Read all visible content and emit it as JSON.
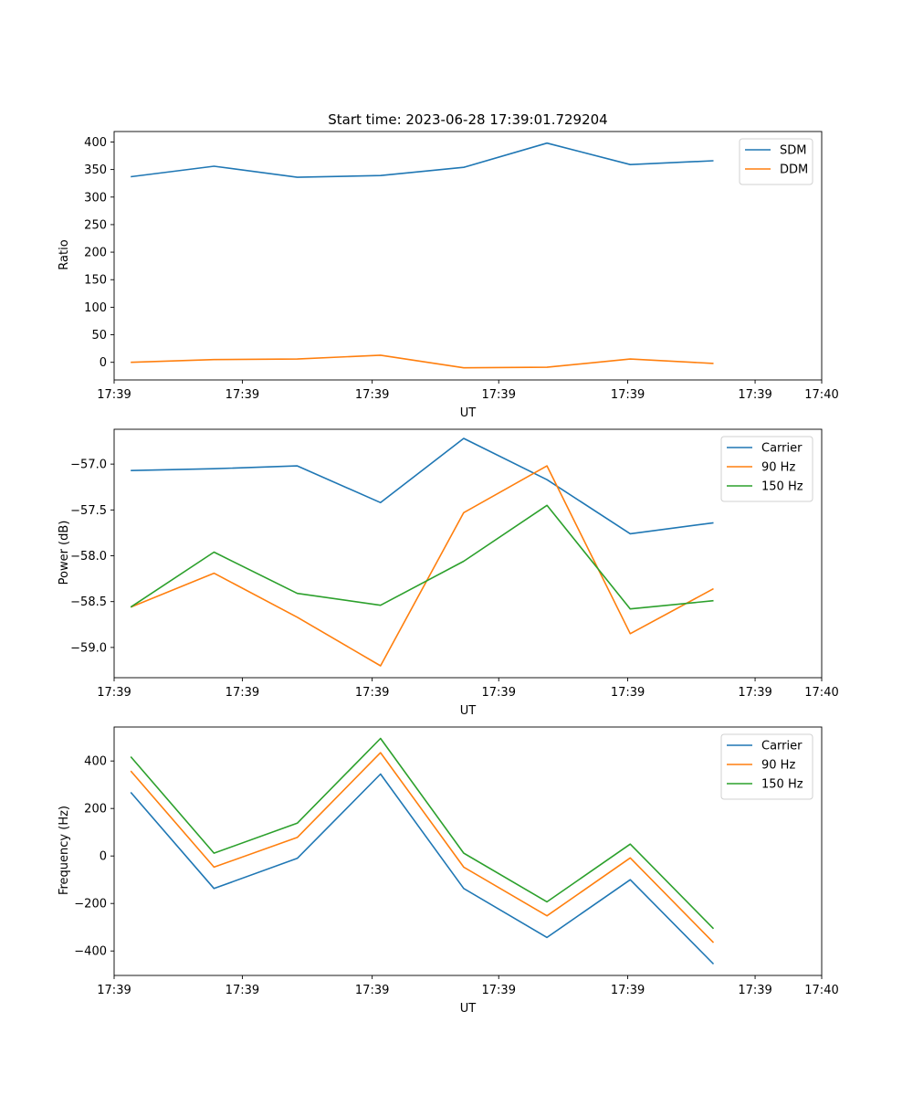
{
  "chart_data": [
    {
      "type": "line",
      "title": "Start time: 2023-06-28 17:39:01.729204",
      "xlabel": "UT",
      "ylabel": "Ratio",
      "x": [
        1,
        2,
        3,
        4,
        5,
        6,
        7,
        8
      ],
      "xlim": [
        0.8,
        9.3
      ],
      "x_ticks": [
        0.8,
        2.34,
        3.9,
        5.42,
        6.97,
        8.5,
        9.3
      ],
      "x_tick_labels": [
        "17:39",
        "17:39",
        "17:39",
        "17:39",
        "17:39",
        "17:39",
        "17:40"
      ],
      "ylim": [
        -32,
        419
      ],
      "y_ticks": [
        0,
        50,
        100,
        150,
        200,
        250,
        300,
        350,
        400
      ],
      "y_tick_labels": [
        "0",
        "50",
        "100",
        "150",
        "200",
        "250",
        "300",
        "350",
        "400"
      ],
      "legend_position": "top-right",
      "series": [
        {
          "name": "SDM",
          "color": "#1f77b4",
          "values": [
            337,
            356,
            336,
            339,
            354,
            398,
            359,
            366
          ]
        },
        {
          "name": "DDM",
          "color": "#ff7f0e",
          "values": [
            0,
            5,
            6,
            13,
            -10,
            -9,
            6,
            -2
          ]
        }
      ]
    },
    {
      "type": "line",
      "xlabel": "UT",
      "ylabel": "Power (dB)",
      "x": [
        1,
        2,
        3,
        4,
        5,
        6,
        7,
        8
      ],
      "xlim": [
        0.8,
        9.3
      ],
      "x_ticks": [
        0.8,
        2.34,
        3.9,
        5.42,
        6.97,
        8.5,
        9.3
      ],
      "x_tick_labels": [
        "17:39",
        "17:39",
        "17:39",
        "17:39",
        "17:39",
        "17:39",
        "17:40"
      ],
      "ylim": [
        -59.33,
        -56.62
      ],
      "y_ticks": [
        -59.0,
        -58.5,
        -58.0,
        -57.5,
        -57.0
      ],
      "y_tick_labels": [
        "−59.0",
        "−58.5",
        "−58.0",
        "−57.5",
        "−57.0"
      ],
      "legend_position": "top-right",
      "series": [
        {
          "name": "Carrier",
          "color": "#1f77b4",
          "values": [
            -57.07,
            -57.05,
            -57.02,
            -57.42,
            -56.72,
            -57.17,
            -57.76,
            -57.64
          ]
        },
        {
          "name": "90 Hz",
          "color": "#ff7f0e",
          "values": [
            -58.56,
            -58.19,
            -58.67,
            -59.2,
            -57.53,
            -57.02,
            -58.85,
            -58.36
          ]
        },
        {
          "name": "150 Hz",
          "color": "#2ca02c",
          "values": [
            -58.56,
            -57.96,
            -58.41,
            -58.54,
            -58.06,
            -57.45,
            -58.58,
            -58.49
          ]
        }
      ]
    },
    {
      "type": "line",
      "xlabel": "UT",
      "ylabel": "Frequency (Hz)",
      "x": [
        1,
        2,
        3,
        4,
        5,
        6,
        7,
        8
      ],
      "xlim": [
        0.8,
        9.3
      ],
      "x_ticks": [
        0.8,
        2.34,
        3.9,
        5.42,
        6.97,
        8.5,
        9.3
      ],
      "x_tick_labels": [
        "17:39",
        "17:39",
        "17:39",
        "17:39",
        "17:39",
        "17:39",
        "17:40"
      ],
      "ylim": [
        -503,
        543
      ],
      "y_ticks": [
        -400,
        -200,
        0,
        200,
        400
      ],
      "y_tick_labels": [
        "−400",
        "−200",
        "0",
        "200",
        "400"
      ],
      "legend_position": "top-right",
      "series": [
        {
          "name": "Carrier",
          "color": "#1f77b4",
          "values": [
            268,
            -137,
            -10,
            345,
            -137,
            -343,
            -100,
            -455
          ]
        },
        {
          "name": "90 Hz",
          "color": "#ff7f0e",
          "values": [
            358,
            -47,
            78,
            435,
            -47,
            -252,
            -8,
            -365
          ]
        },
        {
          "name": "150 Hz",
          "color": "#2ca02c",
          "values": [
            418,
            12,
            138,
            495,
            12,
            -193,
            50,
            -306
          ]
        }
      ]
    }
  ]
}
